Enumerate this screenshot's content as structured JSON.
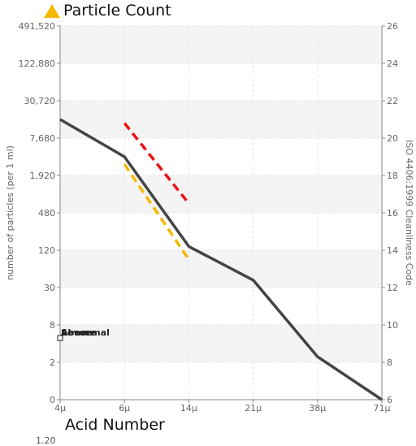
{
  "header": {
    "title": "Particle Count",
    "title_icon": "warning-triangle-icon",
    "title_icon_color": "#f5b800"
  },
  "footer": {
    "subtitle": "Acid Number",
    "stray_text": "1.20"
  },
  "chart_data": {
    "type": "line",
    "x_categories": [
      "4μ",
      "6μ",
      "14μ",
      "21μ",
      "38μ",
      "71μ"
    ],
    "y_left_label": "number of particles (per 1 ml)",
    "y_left_ticks": [
      "0",
      "2",
      "8",
      "30",
      "120",
      "480",
      "1,920",
      "7,680",
      "30,720",
      "122,880",
      "491,520"
    ],
    "y_right_label": "ISO 4406:1999 Cleanliness Code",
    "y_right_ticks": [
      "6",
      "8",
      "10",
      "12",
      "14",
      "16",
      "18",
      "20",
      "22",
      "24",
      "26"
    ],
    "ylim_code": [
      6,
      26
    ],
    "grid": true,
    "series": [
      {
        "color": "#444444",
        "values": [
          21,
          19,
          14.2,
          12.4,
          8.3,
          6
        ]
      }
    ],
    "limit_lines": [
      {
        "color": "#ee1111",
        "x_start": "6μ",
        "x_end": "14μ",
        "y_start": 20.8,
        "y_end": 16.5
      },
      {
        "color": "#f5b800",
        "x_start": "6μ",
        "x_end": "14μ",
        "y_start": 18.6,
        "y_end": 13.5
      }
    ],
    "annotations": [
      {
        "texts": [
          "Above",
          "Severe",
          "Abnormal"
        ],
        "x": "4μ",
        "y": 9.3
      }
    ]
  }
}
